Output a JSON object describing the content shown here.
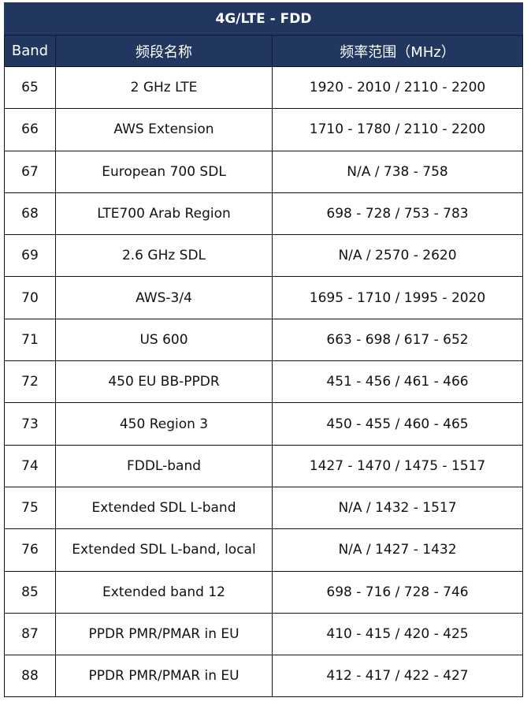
{
  "title": "4G/LTE - FDD",
  "headers": [
    "Band",
    "频段名称",
    "频率范围（MHz）"
  ],
  "header_color": "#22375f",
  "rows": [
    [
      "65",
      "2 GHz LTE",
      "1920 - 2010 / 2110 - 2200"
    ],
    [
      "66",
      "AWS Extension",
      "1710 - 1780 / 2110 - 2200"
    ],
    [
      "67",
      "European 700 SDL",
      "N/A / 738 - 758"
    ],
    [
      "68",
      "LTE700 Arab Region",
      "698 - 728 / 753 - 783"
    ],
    [
      "69",
      "2.6 GHz SDL",
      "N/A / 2570 - 2620"
    ],
    [
      "70",
      "AWS-3/4",
      "1695 - 1710 / 1995 - 2020"
    ],
    [
      "71",
      "US 600",
      "663 - 698 / 617 - 652"
    ],
    [
      "72",
      "450 EU BB-PPDR",
      "451 - 456 / 461 - 466"
    ],
    [
      "73",
      "450 Region 3",
      "450 - 455 / 460 - 465"
    ],
    [
      "74",
      "FDDL-band",
      "1427 - 1470 / 1475 - 1517"
    ],
    [
      "75",
      "Extended SDL L-band",
      "N/A / 1432 - 1517"
    ],
    [
      "76",
      "Extended SDL L-band, local",
      "N/A / 1427 - 1432"
    ],
    [
      "85",
      "Extended band 12",
      "698 - 716 / 728 - 746"
    ],
    [
      "87",
      "PPDR PMR/PMAR in EU",
      "410 - 415 / 420 - 425"
    ],
    [
      "88",
      "PPDR PMR/PMAR in EU",
      "412 - 417 / 422 - 427"
    ]
  ]
}
